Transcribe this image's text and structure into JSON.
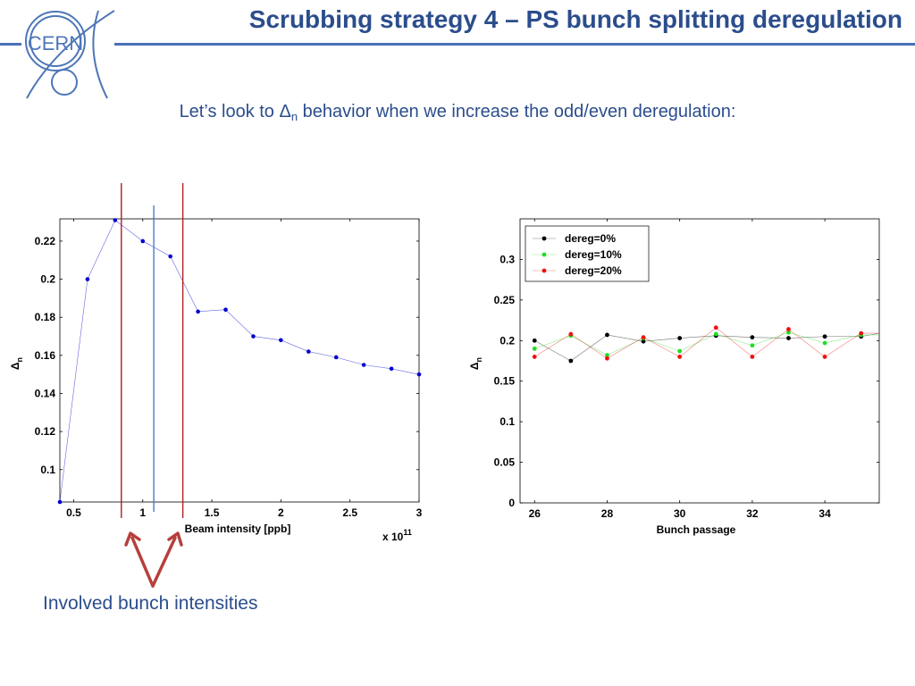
{
  "slide": {
    "title": "Scrubbing strategy 4 – PS bunch splitting deregulation",
    "subtitle_before": "Let’s look to Δ",
    "subtitle_sub": "n",
    "subtitle_after": " behavior when we increase the odd/even deregulation:",
    "caption": "Involved bunch intensities",
    "logo_text": "CERN"
  },
  "colors": {
    "title": "#2b4d8c",
    "rule": "#4a70b8",
    "logo": "#4e76b8",
    "marker_red": "#b01e23",
    "marker_blue": "#4a7cc4",
    "arrow": "#b5403c"
  },
  "chart_data": [
    {
      "type": "line",
      "x": [
        0.4,
        0.6,
        0.8,
        1.0,
        1.2,
        1.4,
        1.6,
        1.8,
        2.0,
        2.2,
        2.4,
        2.6,
        2.8,
        3.0
      ],
      "y": [
        0.083,
        0.2,
        0.231,
        0.22,
        0.212,
        0.183,
        0.184,
        0.17,
        0.168,
        0.162,
        0.159,
        0.155,
        0.153,
        0.15
      ],
      "series_color": "#0000d0",
      "xlim": [
        0.4,
        3.0
      ],
      "ylim": [
        0.083,
        0.2317
      ],
      "xticks": [
        0.5,
        1.0,
        1.5,
        2.0,
        2.5,
        3.0
      ],
      "xtick_labels": [
        "0.5",
        "1",
        "1.5",
        "2",
        "2.5",
        "3"
      ],
      "yticks": [
        0.1,
        0.12,
        0.14,
        0.16,
        0.18,
        0.2,
        0.22
      ],
      "ytick_labels": [
        "0.1",
        "0.12",
        "0.14",
        "0.16",
        "0.18",
        "0.2",
        "0.22"
      ],
      "xlabel": "Beam intensity [ppb]",
      "ylabel": "Δ",
      "ylabel_sub": "n",
      "x_multiplier_base": "x 10",
      "x_multiplier_exp": "11",
      "grid": false,
      "vertical_markers": [
        {
          "x": 0.845,
          "color": "#b01e23"
        },
        {
          "x": 1.08,
          "color": "#4a7cc4"
        },
        {
          "x": 1.29,
          "color": "#b01e23"
        }
      ]
    },
    {
      "type": "line",
      "x": [
        26,
        27,
        28,
        29,
        30,
        31,
        32,
        33,
        34,
        35
      ],
      "series": [
        {
          "name": "dereg=0%",
          "color": "#000000",
          "values": [
            0.2,
            0.175,
            0.207,
            0.199,
            0.203,
            0.206,
            0.204,
            0.203,
            0.205,
            0.205
          ]
        },
        {
          "name": "dereg=10%",
          "color": "#22dd22",
          "values": [
            0.19,
            0.206,
            0.182,
            0.203,
            0.187,
            0.208,
            0.194,
            0.21,
            0.197,
            0.207
          ]
        },
        {
          "name": "dereg=20%",
          "color": "#ee1111",
          "values": [
            0.18,
            0.208,
            0.178,
            0.204,
            0.18,
            0.216,
            0.18,
            0.214,
            0.18,
            0.209
          ]
        }
      ],
      "xlim": [
        25.6,
        35.5
      ],
      "ylim": [
        0,
        0.35
      ],
      "xticks": [
        26,
        28,
        30,
        32,
        34
      ],
      "xtick_labels": [
        "26",
        "28",
        "30",
        "32",
        "34"
      ],
      "yticks": [
        0,
        0.05,
        0.1,
        0.15,
        0.2,
        0.25,
        0.3
      ],
      "ytick_labels": [
        "0",
        "0.05",
        "0.1",
        "0.15",
        "0.2",
        "0.25",
        "0.3"
      ],
      "xlabel": "Bunch passage",
      "ylabel": "Δ",
      "ylabel_sub": "n",
      "legend_position": "top-left",
      "grid": false
    }
  ]
}
